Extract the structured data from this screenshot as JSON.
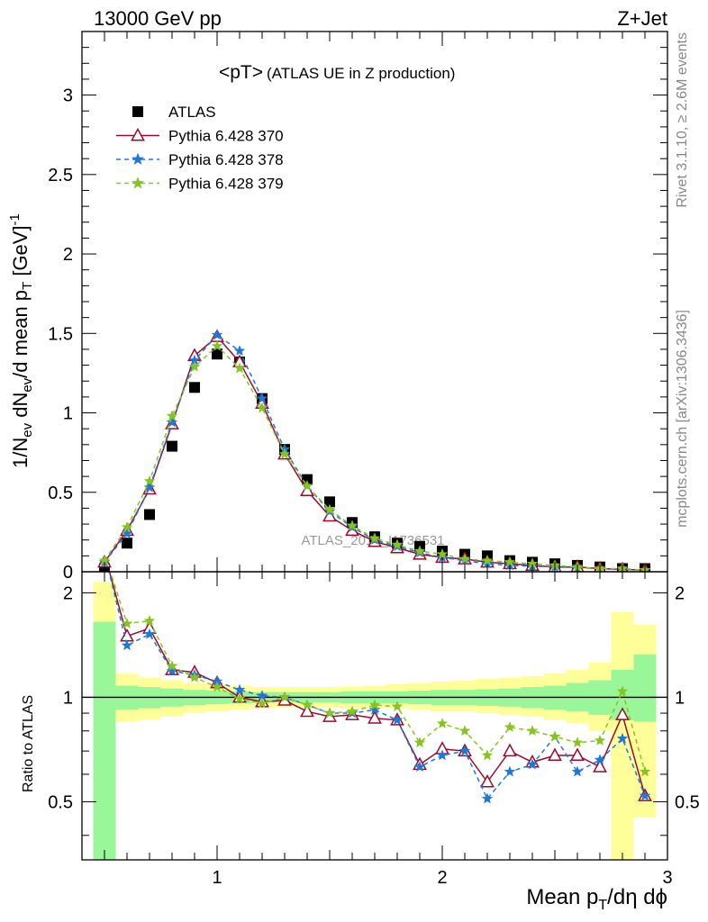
{
  "header": {
    "left": "13000 GeV pp",
    "right": "Z+Jet"
  },
  "main_title": {
    "big": "<pT>",
    "small": "(ATLAS UE in Z production)"
  },
  "side_labels": {
    "rivet": "Rivet 3.1.10, ≥ 2.6M events",
    "mcplots": "mcplots.cern.ch [arXiv:1306.3436]"
  },
  "watermark": "ATLAS_2014_I1736531",
  "legend": [
    {
      "label": "ATLAS",
      "style": "marker"
    },
    {
      "label": "Pythia 6.428 370",
      "style": "triangle"
    },
    {
      "label": "Pythia 6.428 378",
      "style": "star-blue"
    },
    {
      "label": "Pythia 6.428 379",
      "style": "star-green"
    }
  ],
  "colors": {
    "data": "#000000",
    "p370": "#9b0b2e",
    "p378": "#1f78d8",
    "p379": "#86c41f",
    "band_inner": "#99f799",
    "band_outer": "#ffff99"
  },
  "chart_data": [
    {
      "type": "scatter",
      "panel": "main",
      "ylabel": "1/N_ev dN_ev/d mean p_T [GeV]^-1",
      "xlim": [
        0.4,
        3.0
      ],
      "ylim": [
        0,
        3.4
      ],
      "yticks": [
        "0",
        "0.5",
        "1",
        "1.5",
        "2",
        "2.5",
        "3"
      ],
      "x": [
        0.5,
        0.6,
        0.7,
        0.8,
        0.9,
        1.0,
        1.1,
        1.2,
        1.3,
        1.4,
        1.5,
        1.6,
        1.7,
        1.8,
        1.9,
        2.0,
        2.1,
        2.2,
        2.3,
        2.4,
        2.5,
        2.6,
        2.7,
        2.8,
        2.9
      ],
      "series": [
        {
          "name": "ATLAS",
          "values": [
            0.02,
            0.18,
            0.36,
            0.79,
            1.16,
            1.37,
            1.32,
            1.09,
            0.77,
            0.58,
            0.44,
            0.31,
            0.22,
            0.18,
            0.16,
            0.13,
            0.11,
            0.1,
            0.07,
            0.06,
            0.05,
            0.04,
            0.03,
            0.02,
            0.02
          ]
        },
        {
          "name": "Pythia 6.428 370",
          "values": [
            0.06,
            0.26,
            0.52,
            0.93,
            1.36,
            1.48,
            1.32,
            1.06,
            0.74,
            0.51,
            0.35,
            0.26,
            0.19,
            0.15,
            0.11,
            0.09,
            0.08,
            0.06,
            0.05,
            0.04,
            0.03,
            0.03,
            0.02,
            0.015,
            0.01
          ]
        },
        {
          "name": "Pythia 6.428 378",
          "values": [
            0.06,
            0.24,
            0.53,
            0.94,
            1.33,
            1.49,
            1.39,
            1.09,
            0.77,
            0.54,
            0.38,
            0.28,
            0.2,
            0.16,
            0.12,
            0.09,
            0.07,
            0.05,
            0.04,
            0.035,
            0.03,
            0.025,
            0.02,
            0.015,
            0.01
          ]
        },
        {
          "name": "Pythia 6.428 379",
          "values": [
            0.07,
            0.28,
            0.57,
            0.98,
            1.29,
            1.42,
            1.28,
            1.03,
            0.74,
            0.54,
            0.39,
            0.29,
            0.21,
            0.17,
            0.13,
            0.11,
            0.08,
            0.07,
            0.06,
            0.05,
            0.04,
            0.03,
            0.02,
            0.02,
            0.01
          ]
        }
      ]
    },
    {
      "type": "line",
      "panel": "ratio",
      "ylabel": "Ratio to ATLAS",
      "xlabel": "Mean p_T/dη dϕ",
      "xlim": [
        0.4,
        3.0
      ],
      "ylim": [
        0.34,
        2.3
      ],
      "yticks": [
        "0.5",
        "1",
        "2"
      ],
      "xticks": [
        "1",
        "2",
        "3"
      ],
      "x": [
        0.5,
        0.6,
        0.7,
        0.8,
        0.9,
        1.0,
        1.1,
        1.2,
        1.3,
        1.4,
        1.5,
        1.6,
        1.7,
        1.8,
        1.9,
        2.0,
        2.1,
        2.2,
        2.3,
        2.4,
        2.5,
        2.6,
        2.7,
        2.8,
        2.9
      ],
      "band": {
        "bin_edges": [
          0.45,
          0.55,
          0.65,
          0.75,
          0.85,
          0.95,
          1.05,
          1.15,
          1.25,
          1.35,
          1.45,
          1.55,
          1.65,
          1.75,
          1.85,
          1.95,
          2.05,
          2.15,
          2.25,
          2.35,
          2.45,
          2.55,
          2.65,
          2.75,
          2.85,
          2.95
        ],
        "inner_lo": [
          0.34,
          0.92,
          0.93,
          0.94,
          0.95,
          0.955,
          0.96,
          0.965,
          0.965,
          0.965,
          0.965,
          0.96,
          0.96,
          0.96,
          0.955,
          0.95,
          0.95,
          0.945,
          0.94,
          0.93,
          0.92,
          0.91,
          0.89,
          0.86,
          0.85
        ],
        "inner_hi": [
          1.65,
          1.08,
          1.07,
          1.06,
          1.05,
          1.045,
          1.04,
          1.035,
          1.035,
          1.035,
          1.035,
          1.04,
          1.04,
          1.04,
          1.045,
          1.05,
          1.05,
          1.055,
          1.06,
          1.07,
          1.08,
          1.1,
          1.12,
          1.2,
          1.33
        ],
        "outer_lo": [
          0.34,
          0.85,
          0.86,
          0.88,
          0.9,
          0.91,
          0.92,
          0.93,
          0.935,
          0.935,
          0.935,
          0.93,
          0.93,
          0.93,
          0.92,
          0.91,
          0.91,
          0.9,
          0.89,
          0.88,
          0.86,
          0.84,
          0.8,
          0.34,
          0.45
        ],
        "outer_hi": [
          2.15,
          1.17,
          1.14,
          1.12,
          1.1,
          1.09,
          1.08,
          1.07,
          1.07,
          1.07,
          1.07,
          1.075,
          1.08,
          1.09,
          1.1,
          1.11,
          1.12,
          1.13,
          1.14,
          1.15,
          1.17,
          1.2,
          1.26,
          1.76,
          1.62
        ]
      },
      "series": [
        {
          "name": "Pythia 6.428 370",
          "values": [
            2.6,
            1.5,
            1.58,
            1.2,
            1.18,
            1.1,
            1.0,
            0.97,
            0.98,
            0.91,
            0.88,
            0.89,
            0.87,
            0.86,
            0.64,
            0.71,
            0.7,
            0.57,
            0.7,
            0.65,
            0.68,
            0.68,
            0.63,
            0.89,
            0.52
          ]
        },
        {
          "name": "Pythia 6.428 378",
          "values": [
            2.6,
            1.41,
            1.52,
            1.19,
            1.16,
            1.11,
            1.05,
            1.01,
            1.0,
            0.95,
            0.9,
            0.9,
            0.92,
            0.86,
            0.63,
            0.68,
            0.7,
            0.51,
            0.61,
            0.64,
            0.77,
            0.61,
            0.66,
            0.76,
            0.52
          ]
        },
        {
          "name": "Pythia 6.428 379",
          "values": [
            2.6,
            1.63,
            1.66,
            1.23,
            1.14,
            1.07,
            0.99,
            0.96,
            1.0,
            0.95,
            0.9,
            0.91,
            0.95,
            0.94,
            0.74,
            0.84,
            0.8,
            0.68,
            0.82,
            0.8,
            0.77,
            0.74,
            0.75,
            1.04,
            0.61
          ]
        }
      ]
    }
  ]
}
